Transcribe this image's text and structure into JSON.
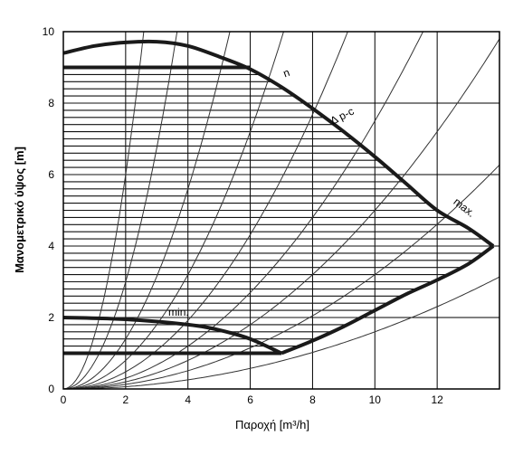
{
  "chart_data": {
    "type": "line",
    "xlabel": "Παροχή [m³/h]",
    "ylabel": "Μανομετρικό ύψος [m]",
    "xlim": [
      0,
      14
    ],
    "ylim": [
      0,
      10
    ],
    "x_ticks": [
      0,
      2,
      4,
      6,
      8,
      10,
      12
    ],
    "y_ticks": [
      0,
      2,
      4,
      6,
      8,
      10
    ],
    "x_tick_labels": [
      "0",
      "2",
      "4",
      "6",
      "8",
      "10",
      "12"
    ],
    "y_tick_labels": [
      "0",
      "2",
      "4",
      "6",
      "8",
      "10"
    ],
    "grid": true,
    "grid_x": [
      0,
      2,
      4,
      6,
      8,
      10,
      12,
      14
    ],
    "grid_y": [
      0,
      2,
      4,
      6,
      8,
      10
    ],
    "curves": {
      "max_curve_top": [
        [
          0,
          9.4
        ],
        [
          1,
          9.6
        ],
        [
          2,
          9.7
        ],
        [
          3,
          9.72
        ],
        [
          4,
          9.6
        ],
        [
          5,
          9.3
        ],
        [
          6,
          8.95
        ],
        [
          7,
          8.45
        ],
        [
          8,
          7.85
        ],
        [
          9,
          7.2
        ],
        [
          10,
          6.5
        ],
        [
          11,
          5.75
        ],
        [
          12,
          5.0
        ],
        [
          13,
          4.5
        ],
        [
          13.8,
          4.0
        ]
      ],
      "max_curve_bottom": [
        [
          7.0,
          1.0
        ],
        [
          8,
          1.35
        ],
        [
          9,
          1.75
        ],
        [
          10,
          2.2
        ],
        [
          11,
          2.65
        ],
        [
          12,
          3.05
        ],
        [
          13,
          3.5
        ],
        [
          13.8,
          4.0
        ]
      ],
      "dpc_line": [
        [
          0,
          9.0
        ],
        [
          6,
          9.0
        ]
      ],
      "min_curve": [
        [
          0,
          2.0
        ],
        [
          2,
          1.95
        ],
        [
          4,
          1.8
        ],
        [
          5,
          1.65
        ],
        [
          6,
          1.4
        ],
        [
          7.0,
          1.0
        ]
      ],
      "min_line": [
        [
          0,
          1.0
        ],
        [
          7.0,
          1.0
        ]
      ]
    },
    "system_curve_coeffs": [
      1.5,
      0.75,
      0.35,
      0.2,
      0.12,
      0.075,
      0.05,
      0.032,
      0.016
    ],
    "annotations": [
      {
        "text": "Δ p-c",
        "x": 9.0,
        "y": 7.55,
        "rotation": -27
      },
      {
        "text": "max.",
        "x": 12.8,
        "y": 5.0,
        "rotation": 38
      },
      {
        "text": "min.",
        "x": 3.7,
        "y": 2.05,
        "rotation": 0
      },
      {
        "text": "n",
        "x": 7.2,
        "y": 8.75,
        "rotation": -20
      }
    ],
    "colors": {
      "frame": "#000000",
      "grid": "#000000",
      "curve": "#1a1a1a",
      "hatch": "#111111",
      "system": "#333333"
    }
  }
}
